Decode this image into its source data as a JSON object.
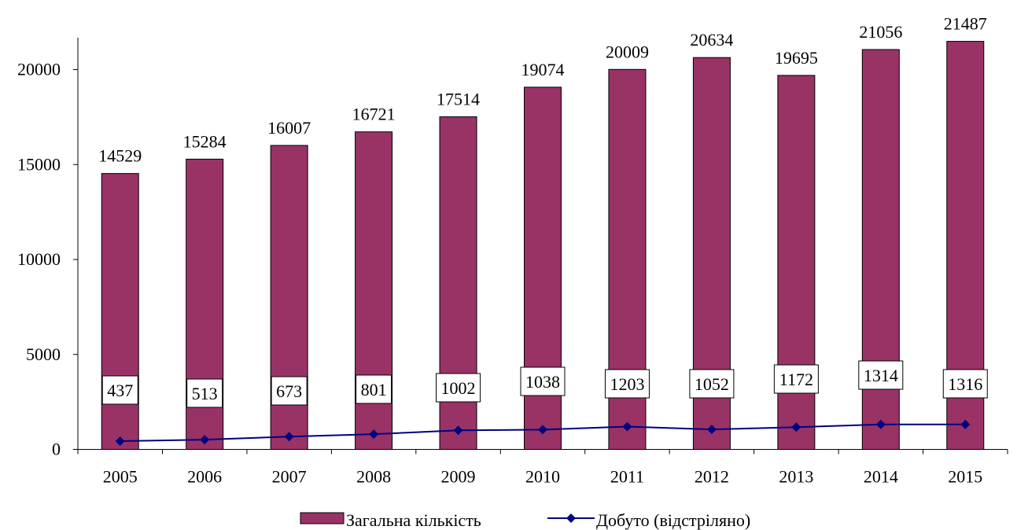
{
  "chart_data": {
    "type": "bar",
    "categories": [
      "2005",
      "2006",
      "2007",
      "2008",
      "2009",
      "2010",
      "2011",
      "2012",
      "2013",
      "2014",
      "2015"
    ],
    "series": [
      {
        "name": "Загальна кількість",
        "type": "bar",
        "color": "#993366",
        "values": [
          14529,
          15284,
          16007,
          16721,
          17514,
          19074,
          20009,
          20634,
          19695,
          21056,
          21487
        ]
      },
      {
        "name": "Добуто (відстріляно)",
        "type": "line",
        "color": "#000080",
        "values": [
          437,
          513,
          673,
          801,
          1002,
          1038,
          1203,
          1052,
          1172,
          1314,
          1316
        ]
      }
    ],
    "ylim": [
      0,
      20000
    ],
    "yticks": [
      0,
      5000,
      10000,
      15000,
      20000
    ],
    "grid": false,
    "legend": "bottom"
  }
}
